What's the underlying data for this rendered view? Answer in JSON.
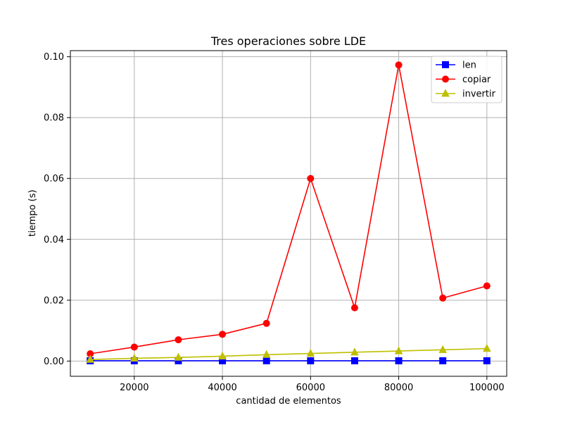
{
  "chart_data": {
    "type": "line",
    "title": "Tres operaciones sobre LDE",
    "xlabel": "cantidad de elementos",
    "ylabel": "tiempo (s)",
    "x": [
      10000,
      20000,
      30000,
      40000,
      50000,
      60000,
      70000,
      80000,
      90000,
      100000
    ],
    "xlim": [
      5500,
      104500
    ],
    "ylim": [
      -0.005,
      0.102
    ],
    "xticks": [
      20000,
      40000,
      60000,
      80000,
      100000
    ],
    "yticks": [
      0.0,
      0.02,
      0.04,
      0.06,
      0.08,
      0.1
    ],
    "xtick_labels": [
      "20000",
      "40000",
      "60000",
      "80000",
      "100000"
    ],
    "ytick_labels": [
      "0.00",
      "0.02",
      "0.04",
      "0.06",
      "0.08",
      "0.10"
    ],
    "grid": true,
    "legend_position": "top-right",
    "series": [
      {
        "name": "len",
        "color": "#0000ff",
        "marker": "square",
        "values": [
          0.0001,
          0.0001,
          0.0001,
          0.0001,
          0.0001,
          0.0001,
          0.0001,
          0.0001,
          0.0001,
          0.0001
        ]
      },
      {
        "name": "copiar",
        "color": "#ff0000",
        "marker": "circle",
        "values": [
          0.0024,
          0.0046,
          0.007,
          0.0088,
          0.0124,
          0.06,
          0.0175,
          0.0973,
          0.0207,
          0.0247
        ]
      },
      {
        "name": "invertir",
        "color": "#bfbf00",
        "marker": "triangle",
        "values": [
          0.0005,
          0.0009,
          0.0012,
          0.0016,
          0.0021,
          0.0025,
          0.0029,
          0.0033,
          0.0037,
          0.0041
        ]
      }
    ]
  }
}
